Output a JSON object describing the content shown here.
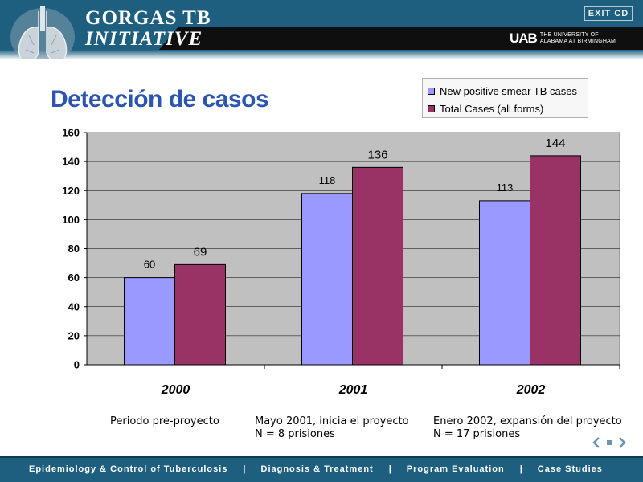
{
  "header": {
    "brand_line1": "GORGAS TB",
    "brand_line2": "INITIATIVE",
    "exit_label": "EXIT CD",
    "uab_logo": "UAB",
    "uab_line1": "THE UNIVERSITY OF",
    "uab_line2": "ALABAMA AT BIRMINGHAM"
  },
  "slide": {
    "title": "Detección de casos"
  },
  "legend": {
    "items": [
      {
        "label": "New  positive smear TB cases",
        "color": "#9999ff"
      },
      {
        "label": "Total Cases (all forms)",
        "color": "#993366"
      }
    ]
  },
  "chart_data": {
    "type": "bar",
    "title": "",
    "xlabel": "",
    "ylabel": "",
    "categories": [
      "2000",
      "2001",
      "2002"
    ],
    "series": [
      {
        "name": "New  positive smear TB cases",
        "values": [
          60,
          118,
          113
        ],
        "color": "#9999ff"
      },
      {
        "name": "Total Cases (all forms)",
        "values": [
          69,
          136,
          144
        ],
        "color": "#993366"
      }
    ],
    "ylim": [
      0,
      160
    ],
    "yticks": [
      0,
      20,
      40,
      60,
      80,
      100,
      120,
      140,
      160
    ],
    "grid": true,
    "legend_position": "top-right",
    "plot_background": "#c0c0c0"
  },
  "annotations": [
    {
      "lines": [
        "Periodo pre-proyecto"
      ]
    },
    {
      "lines": [
        "Mayo 2001, inicia el proyecto",
        "N = 8 prisiones"
      ]
    },
    {
      "lines": [
        "Enero 2002, expansión del proyecto",
        "N = 17 prisiones"
      ]
    }
  ],
  "footer": {
    "links": [
      "Epidemiology & Control of Tuberculosis",
      "Diagnosis & Treatment",
      "Program Evaluation",
      "Case Studies"
    ],
    "separator": "|"
  },
  "colors": {
    "header_blue": "#1e5f80",
    "title_blue": "#2b55b0"
  }
}
